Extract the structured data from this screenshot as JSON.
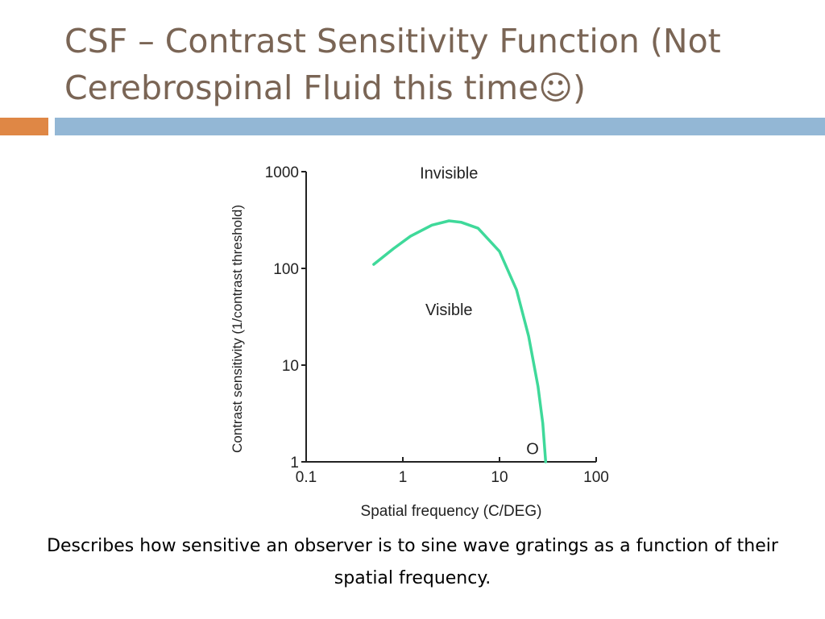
{
  "slide": {
    "title": "CSF – Contrast Sensitivity Function (Not Cerebrospinal Fluid this time☺)",
    "caption": "Describes how sensitive an observer is to sine wave gratings as a function of their spatial frequency."
  },
  "colors": {
    "title": "#7a6555",
    "accent_bar": "#df8745",
    "rule_bar": "#93b7d5",
    "curve": "#3fd99a"
  },
  "chart_data": {
    "type": "line",
    "title": "",
    "xlabel": "Spatial frequency (C/DEG)",
    "ylabel": "Contrast sensitivity (1/contrast threshold)",
    "xscale": "log",
    "yscale": "log",
    "xlim": [
      0.1,
      100
    ],
    "ylim": [
      1,
      1000
    ],
    "xticks": [
      "0.1",
      "1",
      "10",
      "100"
    ],
    "yticks": [
      "1",
      "10",
      "100",
      "1000"
    ],
    "grid": false,
    "legend": "none",
    "series": [
      {
        "x": [
          0.5,
          0.8,
          1.2,
          2,
          3,
          4,
          6,
          10,
          15,
          20,
          25,
          28,
          30
        ],
        "y": [
          110,
          160,
          215,
          280,
          310,
          300,
          260,
          150,
          60,
          20,
          6,
          2.5,
          1
        ]
      }
    ],
    "annotations": [
      {
        "text": "Invisible",
        "x": 3,
        "y": 850
      },
      {
        "text": "Visible",
        "x": 3,
        "y": 33
      },
      {
        "text": "O",
        "x": 22,
        "y": 1.2
      }
    ]
  }
}
